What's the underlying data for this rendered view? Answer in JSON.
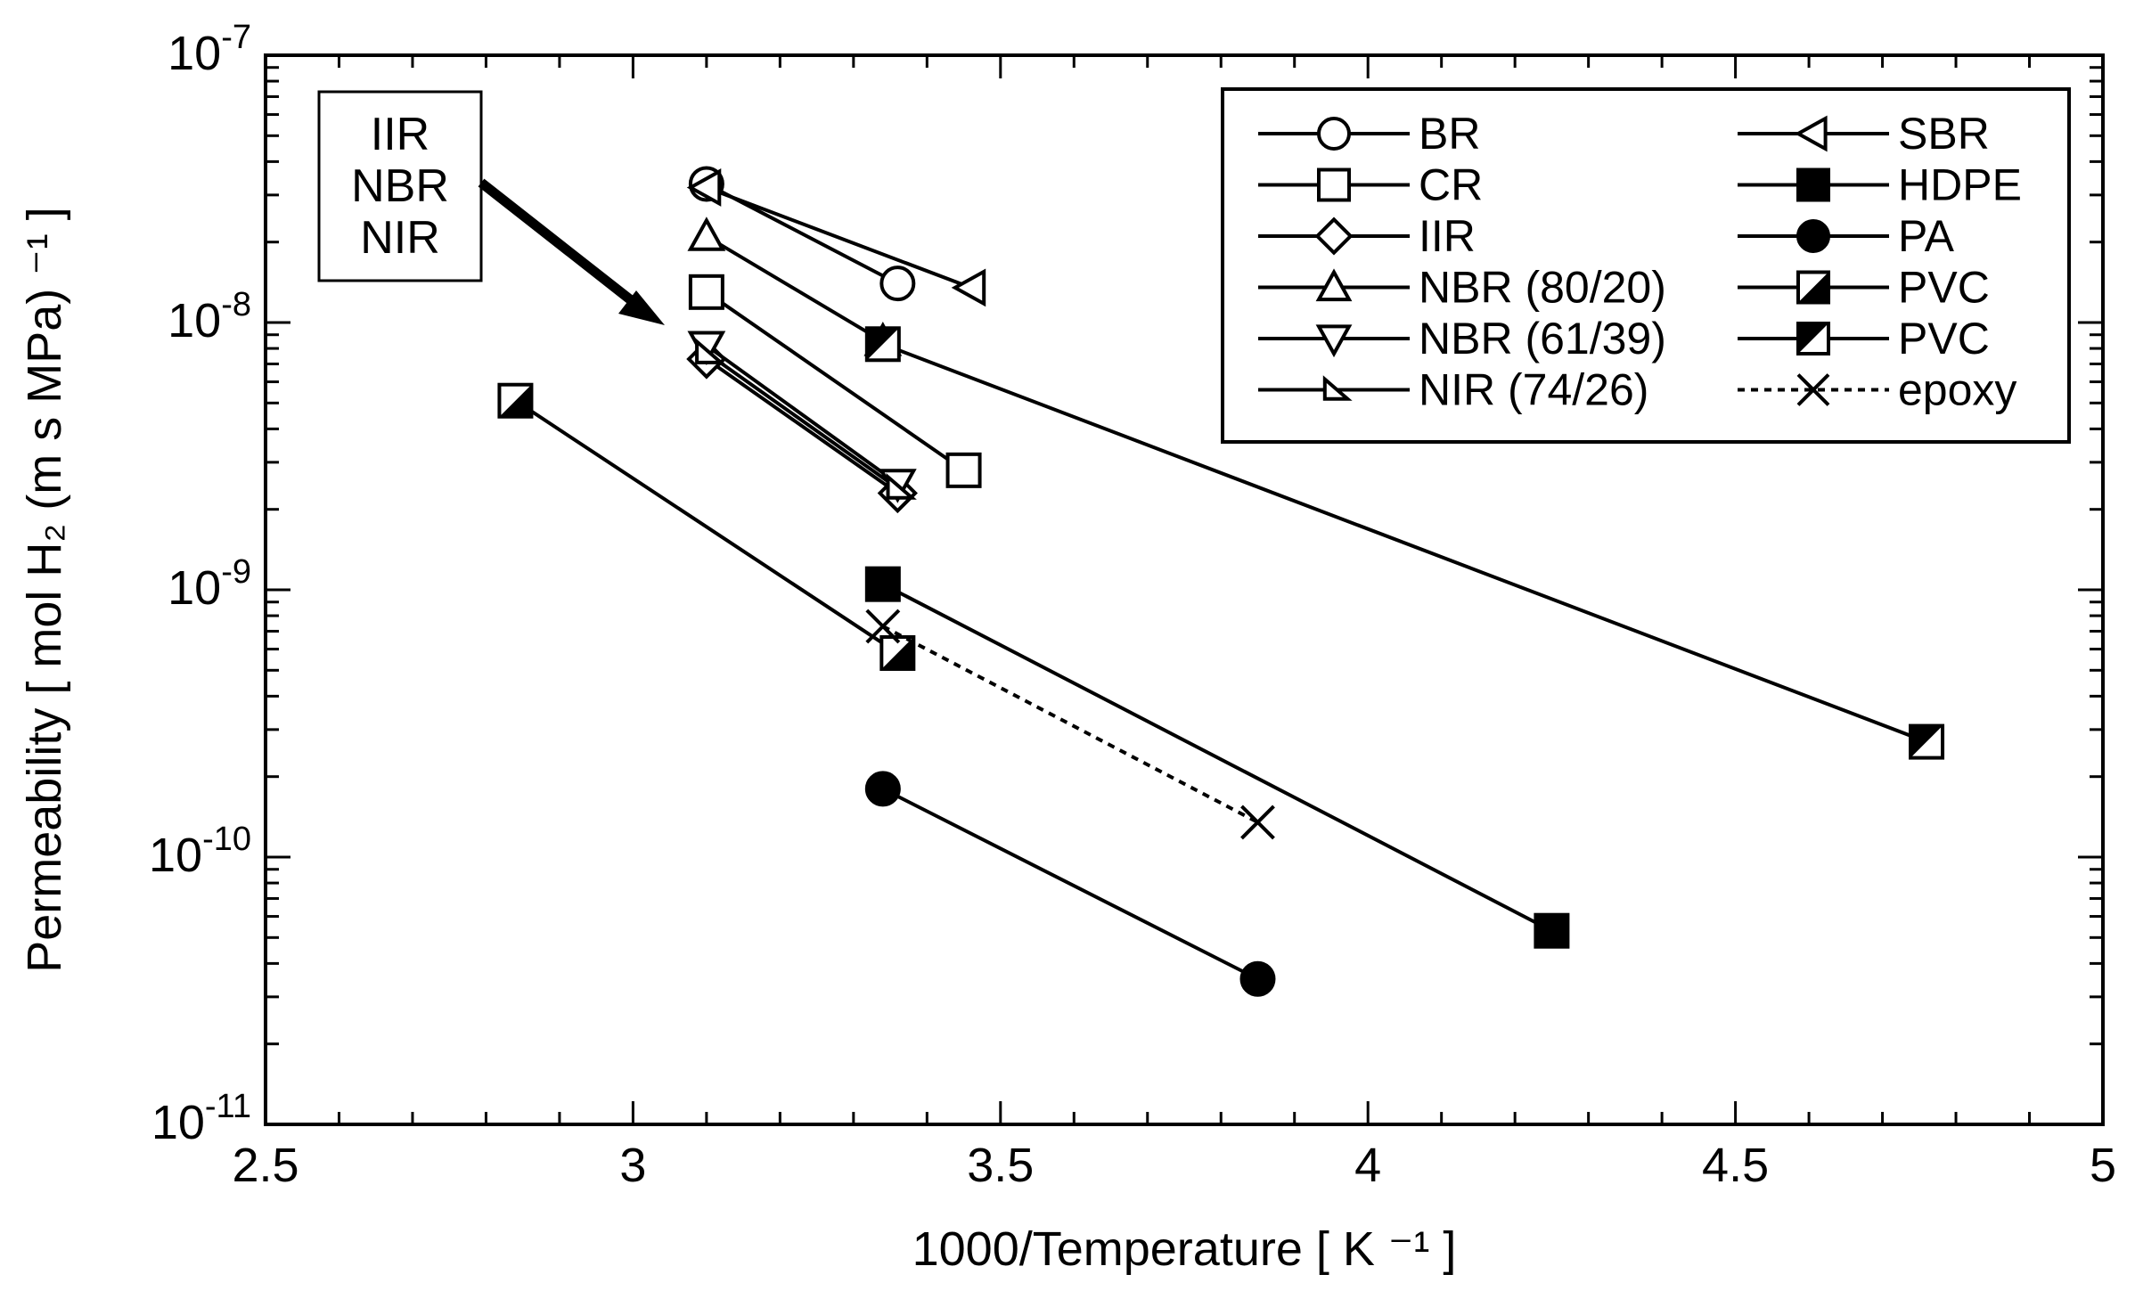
{
  "chart_data": {
    "type": "scatter",
    "title": "",
    "xlabel": "1000/Temperature [ K ⁻¹ ]",
    "ylabel": "Permeability [ mol H₂ (m s MPa) ⁻¹ ]",
    "xlim": [
      2.5,
      5
    ],
    "ylim": [
      1e-11,
      1e-07
    ],
    "yscale": "log",
    "grid": false,
    "legend_position": "top-right",
    "xticks": [
      "2.5",
      "3",
      "3.5",
      "4",
      "4.5",
      "5"
    ],
    "yticks": [
      {
        "base": "10",
        "exp": "-7"
      },
      {
        "base": "10",
        "exp": "-8"
      },
      {
        "base": "10",
        "exp": "-9"
      },
      {
        "base": "10",
        "exp": "-10"
      },
      {
        "base": "10",
        "exp": "-11"
      }
    ],
    "annotation": {
      "lines": [
        "IIR",
        "NBR",
        "NIR"
      ]
    },
    "series": [
      {
        "name": "BR",
        "marker": "circle-open",
        "line": "solid",
        "points": [
          [
            3.1,
            3.3e-08
          ],
          [
            3.36,
            1.4e-08
          ]
        ]
      },
      {
        "name": "CR",
        "marker": "square-open",
        "line": "solid",
        "points": [
          [
            3.1,
            1.3e-08
          ],
          [
            3.45,
            2.8e-09
          ]
        ]
      },
      {
        "name": "IIR",
        "marker": "diamond-open",
        "line": "solid",
        "points": [
          [
            3.1,
            7.3e-09
          ],
          [
            3.36,
            2.3e-09
          ]
        ]
      },
      {
        "name": "NBR (80/20)",
        "marker": "triangle-up-open",
        "line": "solid",
        "points": [
          [
            3.1,
            2.1e-08
          ],
          [
            3.34,
            8.5e-09
          ]
        ]
      },
      {
        "name": "NBR (61/39)",
        "marker": "triangle-down-open",
        "line": "solid",
        "points": [
          [
            3.1,
            8.2e-09
          ],
          [
            3.36,
            2.5e-09
          ]
        ]
      },
      {
        "name": "NIR (74/26)",
        "marker": "triangle-right-open",
        "line": "solid",
        "points": [
          [
            3.1,
            7.7e-09
          ],
          [
            3.36,
            2.4e-09
          ]
        ]
      },
      {
        "name": "SBR",
        "marker": "triangle-left-open",
        "line": "solid",
        "points": [
          [
            3.1,
            3.2e-08
          ],
          [
            3.46,
            1.35e-08
          ]
        ]
      },
      {
        "name": "HDPE",
        "marker": "square-filled",
        "line": "solid",
        "points": [
          [
            3.34,
            1.05e-09
          ],
          [
            4.25,
            5.3e-11
          ]
        ]
      },
      {
        "name": "PA",
        "marker": "circle-filled",
        "line": "solid",
        "points": [
          [
            3.34,
            1.8e-10
          ],
          [
            3.85,
            3.5e-11
          ]
        ]
      },
      {
        "name": "PVC",
        "marker": "square-half-lower",
        "line": "solid",
        "points": [
          [
            2.84,
            5.1e-09
          ],
          [
            3.36,
            5.8e-10
          ]
        ]
      },
      {
        "name": "PVC",
        "marker": "square-half-upper",
        "line": "solid",
        "points": [
          [
            3.34,
            8.3e-09
          ],
          [
            4.76,
            2.7e-10
          ]
        ]
      },
      {
        "name": "epoxy",
        "marker": "x",
        "line": "dotted",
        "points": [
          [
            3.34,
            7.3e-10
          ],
          [
            3.85,
            1.35e-10
          ]
        ]
      }
    ]
  }
}
